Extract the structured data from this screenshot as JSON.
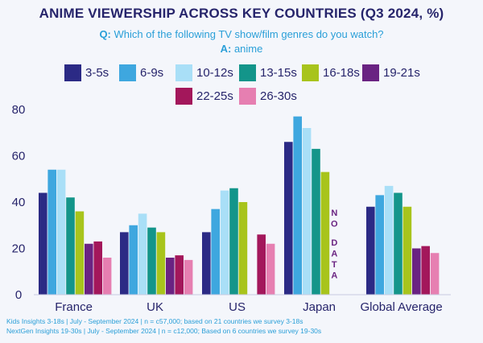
{
  "header": {
    "title": "ANIME VIEWERSHIP ACROSS KEY COUNTRIES (Q3 2024, %)",
    "question_prefix": "Q:",
    "question_text": " Which of the following TV show/film genres do you watch?",
    "answer_prefix": "A:",
    "answer_text": " anime"
  },
  "colors": {
    "title": "#26246b",
    "accent": "#2a9fd8",
    "background": "#f4f6fb"
  },
  "chart_data": {
    "type": "bar",
    "title": "ANIME VIEWERSHIP ACROSS KEY COUNTRIES (Q3 2024, %)",
    "xlabel": "",
    "ylabel": "",
    "ylim": [
      0,
      80
    ],
    "yticks": [
      "0",
      "20",
      "40",
      "60",
      "80"
    ],
    "grid": false,
    "legend_position": "top",
    "categories": [
      "France",
      "UK",
      "US",
      "Japan",
      "Global Average"
    ],
    "series": [
      {
        "name": "3-5s",
        "color": "#2b2a85",
        "values": [
          44,
          27,
          27,
          66,
          38
        ]
      },
      {
        "name": "6-9s",
        "color": "#3ea7df",
        "values": [
          54,
          30,
          37,
          77,
          43
        ]
      },
      {
        "name": "10-12s",
        "color": "#a9dff7",
        "values": [
          54,
          35,
          45,
          72,
          47
        ]
      },
      {
        "name": "13-15s",
        "color": "#13958a",
        "values": [
          42,
          29,
          46,
          63,
          44
        ]
      },
      {
        "name": "16-18s",
        "color": "#a8c41c",
        "values": [
          36,
          27,
          40,
          53,
          38
        ]
      },
      {
        "name": "19-21s",
        "color": "#6a2382",
        "values": [
          22,
          16,
          null,
          null,
          20
        ]
      },
      {
        "name": "22-25s",
        "color": "#a3175b",
        "values": [
          23,
          17,
          26,
          null,
          21
        ]
      },
      {
        "name": "26-30s",
        "color": "#e67fb1",
        "values": [
          16,
          15,
          22,
          null,
          18
        ]
      }
    ],
    "annotations": [
      {
        "category": "Japan",
        "text_top": "NO",
        "text_bottom": "DATA"
      }
    ]
  },
  "footnotes": [
    "Kids Insights 3-18s | July - September 2024 | n = c57,000; based on 21 countries we survey 3-18s",
    "NextGen Insights 19-30s | July - September 2024 | n = c12,000; Based on 6 countries we survey 19-30s"
  ]
}
